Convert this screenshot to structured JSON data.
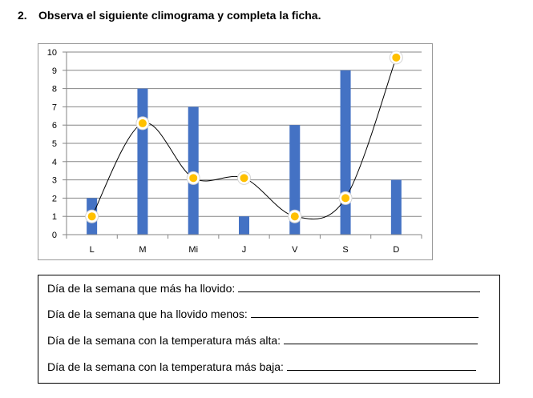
{
  "exercise": {
    "number": "2.",
    "instruction": "Observa el siguiente climograma y completa la ficha."
  },
  "chart_data": {
    "type": "bar",
    "combo": "bar + smoothed line with markers",
    "categories": [
      "L",
      "M",
      "Mi",
      "J",
      "V",
      "S",
      "D"
    ],
    "series": [
      {
        "type": "bar",
        "values": [
          2,
          8,
          7,
          1,
          6,
          9,
          3
        ],
        "color": "#4472c4"
      },
      {
        "type": "line",
        "smooth": true,
        "values": [
          1,
          6.1,
          3.1,
          3.1,
          1,
          2,
          9.7
        ],
        "color": "#000000",
        "marker_color": "#ffc000"
      }
    ],
    "ylim": [
      0,
      10
    ],
    "yticks": [
      0,
      1,
      2,
      3,
      4,
      5,
      6,
      7,
      8,
      9,
      10
    ],
    "xlabel": "",
    "ylabel": "",
    "grid": true,
    "legend": "none"
  },
  "worksheet": {
    "questions": [
      "Día de la semana que más ha llovido:",
      "Día de la semana que ha llovido menos:",
      "Día de la semana con la temperatura más alta:",
      "Día de la semana con la temperatura más baja:"
    ]
  }
}
